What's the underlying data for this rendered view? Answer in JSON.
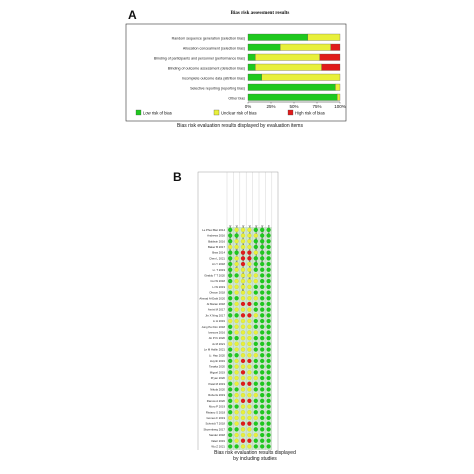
{
  "colors": {
    "low": "#1ec81e",
    "unclear": "#e8f03a",
    "high": "#e01b1b",
    "panel_b_bg": "#cfe9cf"
  },
  "panel_a": {
    "letter": "A",
    "title": "Bias risk assessment results",
    "caption": "Bias risk evaluation results displayed by evaluation items"
  },
  "panel_b": {
    "letter": "B",
    "caption_line1": "Bias risk evaluation results displayed",
    "caption_line2": "by including studies"
  },
  "chart_data": [
    {
      "type": "bar",
      "stacked": true,
      "orientation": "horizontal",
      "categories": [
        "Random sequence generation (selection bias)",
        "Allocation concealment (selection bias)",
        "Blinding of participants and personnel (performance bias)",
        "Blinding of outcome assessment (detection bias)",
        "Incomplete outcome data (attrition bias)",
        "Selective reporting (reporting bias)",
        "Other bias"
      ],
      "series": [
        {
          "name": "Low risk of bias",
          "values": [
            65,
            35,
            8,
            8,
            15,
            95,
            97
          ]
        },
        {
          "name": "Unclear risk of bias",
          "values": [
            35,
            55,
            70,
            72,
            85,
            5,
            3
          ]
        },
        {
          "name": "High risk of bias",
          "values": [
            0,
            10,
            22,
            20,
            0,
            0,
            0
          ]
        }
      ],
      "xticks": [
        "0%",
        "25%",
        "50%",
        "75%",
        "100%"
      ],
      "xlim": [
        0,
        100
      ],
      "legend": "bottom"
    },
    {
      "type": "heatmap",
      "rows": [
        "Le Phuc Biet 2014",
        "Andrews 2016",
        "Baldwin 2016",
        "Baker B 2017",
        "Bras 2014",
        "Chen L 2021",
        "An Y 2018",
        "Li. T 2019",
        "Giraldo T T 2020",
        "Cui W 2018",
        "Li W 2019",
        "Olsson 2018",
        "Ahmad Al-Dabi 2020",
        "Al Maran 2018",
        "Amini M 2017",
        "Jin X Ning 2017",
        "Li H 2019",
        "Jung Pei Kim 2018",
        "Ivanova 2016",
        "Jin P Ki 2020",
        "Ju M 2021",
        "Le M Hallin 2021",
        "Li. Hao 2020",
        "Huynh 2019",
        "Tanaka 2020",
        "Miguel 2019",
        "Pryan 2020",
        "Patel M 2019",
        "Nikola 2020",
        "Roberts 2019",
        "Ramos A 2020",
        "Moro P 2019",
        "Ristano S 2018",
        "Gomes F 2019",
        "Schmidt T 2018",
        "Skorenberg 2017",
        "Sander 2018",
        "Valeri 2019",
        "Wu Z 2021",
        "Yuan Wang 2019"
      ],
      "columns": [
        "Random sequence generation (selection bias)",
        "Allocation concealment (selection bias)",
        "Blinding of participants and personnel (performance bias)",
        "Blinding of outcome assessment (detection bias)",
        "Incomplete outcome data (attrition bias)",
        "Selective reporting (reporting bias)",
        "Other bias"
      ],
      "legend_levels": [
        "low",
        "unclear",
        "high"
      ],
      "cells": [
        [
          "low",
          "unclear",
          "unclear",
          "unclear",
          "low",
          "low",
          "low"
        ],
        [
          "low",
          "low",
          "unclear",
          "unclear",
          "unclear",
          "low",
          "low"
        ],
        [
          "low",
          "unclear",
          "unclear",
          "unclear",
          "low",
          "low",
          "low"
        ],
        [
          "unclear",
          "unclear",
          "unclear",
          "unclear",
          "low",
          "low",
          "low"
        ],
        [
          "low",
          "low",
          "high",
          "high",
          "unclear",
          "low",
          "low"
        ],
        [
          "low",
          "unclear",
          "high",
          "high",
          "low",
          "low",
          "low"
        ],
        [
          "low",
          "unclear",
          "high",
          "unclear",
          "low",
          "low",
          "low"
        ],
        [
          "low",
          "unclear",
          "unclear",
          "unclear",
          "low",
          "low",
          "low"
        ],
        [
          "low",
          "low",
          "unclear",
          "unclear",
          "unclear",
          "low",
          "low"
        ],
        [
          "low",
          "unclear",
          "unclear",
          "unclear",
          "unclear",
          "low",
          "low"
        ],
        [
          "unclear",
          "unclear",
          "unclear",
          "unclear",
          "low",
          "low",
          "low"
        ],
        [
          "low",
          "unclear",
          "unclear",
          "unclear",
          "low",
          "low",
          "low"
        ],
        [
          "low",
          "low",
          "unclear",
          "unclear",
          "unclear",
          "low",
          "low"
        ],
        [
          "low",
          "unclear",
          "high",
          "high",
          "low",
          "low",
          "low"
        ],
        [
          "low",
          "unclear",
          "unclear",
          "unclear",
          "low",
          "low",
          "low"
        ],
        [
          "low",
          "low",
          "high",
          "high",
          "unclear",
          "low",
          "low"
        ],
        [
          "unclear",
          "unclear",
          "unclear",
          "unclear",
          "low",
          "low",
          "low"
        ],
        [
          "low",
          "unclear",
          "unclear",
          "unclear",
          "low",
          "low",
          "low"
        ],
        [
          "low",
          "unclear",
          "unclear",
          "unclear",
          "unclear",
          "low",
          "low"
        ],
        [
          "low",
          "low",
          "unclear",
          "unclear",
          "low",
          "low",
          "low"
        ],
        [
          "unclear",
          "unclear",
          "unclear",
          "unclear",
          "low",
          "low",
          "low"
        ],
        [
          "low",
          "unclear",
          "unclear",
          "unclear",
          "low",
          "low",
          "low"
        ],
        [
          "low",
          "low",
          "unclear",
          "unclear",
          "unclear",
          "low",
          "low"
        ],
        [
          "low",
          "unclear",
          "high",
          "high",
          "low",
          "low",
          "low"
        ],
        [
          "low",
          "unclear",
          "unclear",
          "unclear",
          "low",
          "low",
          "low"
        ],
        [
          "low",
          "unclear",
          "high",
          "unclear",
          "low",
          "low",
          "low"
        ],
        [
          "unclear",
          "unclear",
          "unclear",
          "unclear",
          "unclear",
          "low",
          "low"
        ],
        [
          "low",
          "unclear",
          "high",
          "high",
          "low",
          "low",
          "low"
        ],
        [
          "low",
          "low",
          "unclear",
          "unclear",
          "low",
          "low",
          "low"
        ],
        [
          "low",
          "unclear",
          "unclear",
          "unclear",
          "unclear",
          "low",
          "low"
        ],
        [
          "low",
          "unclear",
          "high",
          "high",
          "low",
          "low",
          "low"
        ],
        [
          "low",
          "low",
          "unclear",
          "unclear",
          "low",
          "low",
          "low"
        ],
        [
          "low",
          "unclear",
          "unclear",
          "unclear",
          "low",
          "low",
          "low"
        ],
        [
          "unclear",
          "unclear",
          "unclear",
          "unclear",
          "unclear",
          "low",
          "low"
        ],
        [
          "low",
          "unclear",
          "high",
          "high",
          "low",
          "low",
          "low"
        ],
        [
          "low",
          "low",
          "unclear",
          "unclear",
          "low",
          "low",
          "low"
        ],
        [
          "low",
          "unclear",
          "unclear",
          "unclear",
          "unclear",
          "low",
          "low"
        ],
        [
          "low",
          "unclear",
          "high",
          "high",
          "low",
          "low",
          "low"
        ],
        [
          "low",
          "low",
          "unclear",
          "unclear",
          "low",
          "low",
          "low"
        ],
        [
          "low",
          "unclear",
          "unclear",
          "unclear",
          "low",
          "low",
          "low"
        ]
      ]
    }
  ]
}
